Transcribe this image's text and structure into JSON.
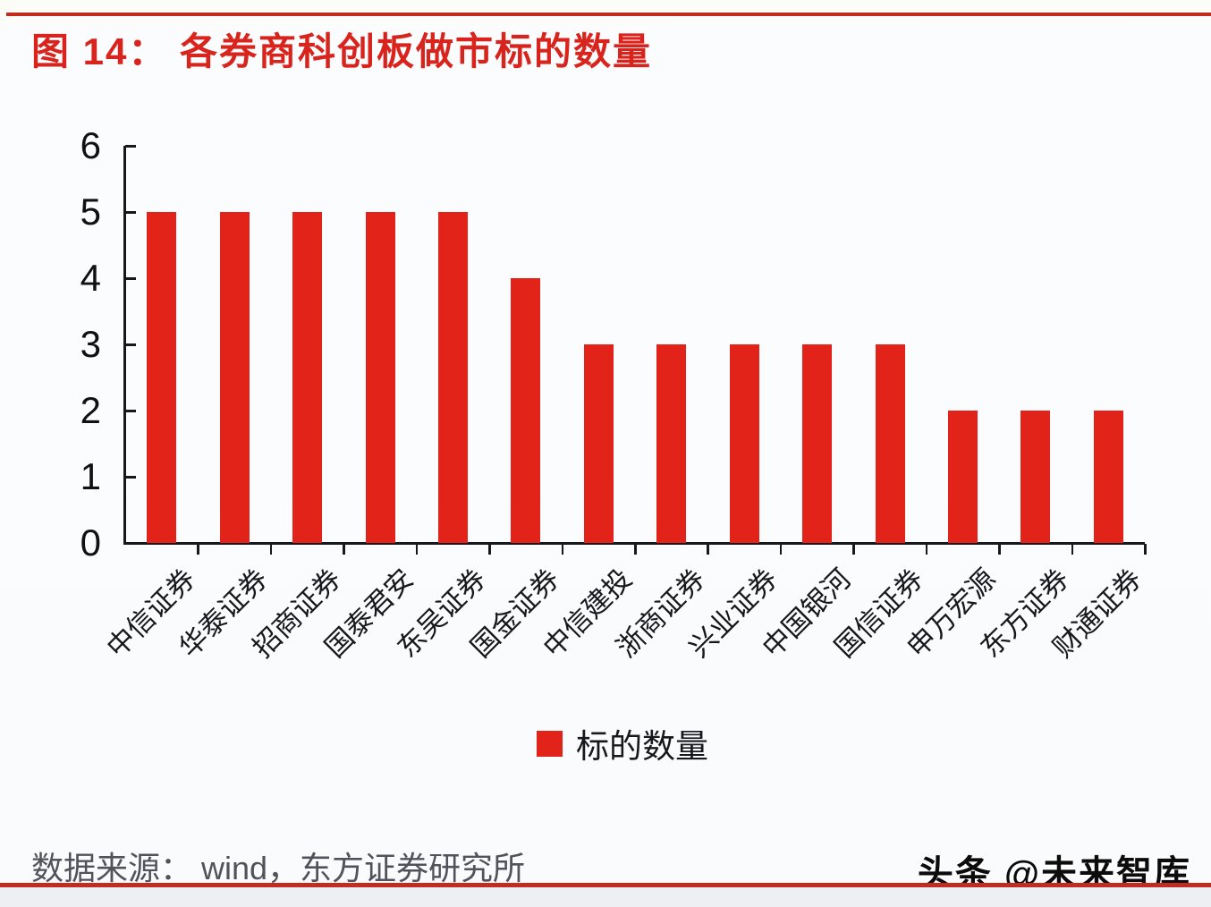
{
  "header": {
    "title": "图 14： 各券商科创板做市标的数量"
  },
  "chart_data": {
    "type": "bar",
    "title": "图 14： 各券商科创板做市标的数量",
    "categories": [
      "中信证券",
      "华泰证券",
      "招商证券",
      "国泰君安",
      "东吴证券",
      "国金证券",
      "中信建投",
      "浙商证券",
      "兴业证券",
      "中国银河",
      "国信证券",
      "申万宏源",
      "东方证券",
      "财通证券"
    ],
    "values": [
      5,
      5,
      5,
      5,
      5,
      4,
      3,
      3,
      3,
      3,
      3,
      2,
      2,
      2
    ],
    "series_name": "标的数量",
    "xlabel": "",
    "ylabel": "",
    "ylim": [
      0,
      6
    ],
    "yticks": [
      0,
      1,
      2,
      3,
      4,
      5,
      6
    ],
    "grid": false,
    "legend_position": "bottom",
    "bar_color": "#e2231a"
  },
  "legend": {
    "label": "标的数量"
  },
  "footer": {
    "source_text": "数据来源： wind，东方证券研究所"
  },
  "watermark": {
    "text": "头条 @未来智库"
  },
  "colors": {
    "bar": "#e2231a",
    "title": "#d8241c",
    "rule": "#c22b20",
    "axis": "#17181c",
    "source_text": "#51535a"
  }
}
